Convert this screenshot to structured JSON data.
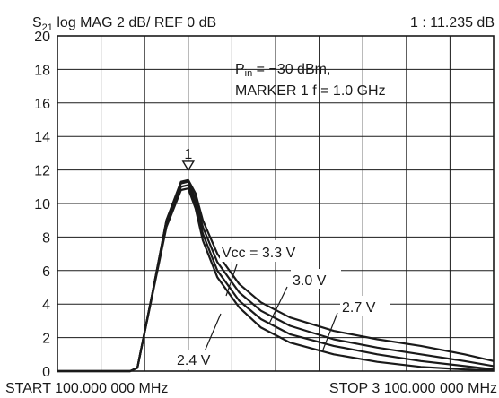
{
  "header": {
    "left": "S21 log   MAG   2 dB/   REF 0 dB",
    "s_base": "S",
    "s_sub": "21",
    "rest": " log    MAG    2 dB/    REF 0 dB",
    "marker_readout": "1 :  11.235 dB"
  },
  "footer": {
    "start": "START  100.000 000 MHz",
    "stop": "STOP  3 100.000 000 MHz"
  },
  "conditions": {
    "pin_base": "P",
    "pin_sub": "in",
    "pin_rest": " = −30 dBm,",
    "marker_line": "MARKER 1  f = 1.0 GHz"
  },
  "marker": {
    "label": "1",
    "x_ghz": 1.0,
    "y_db": 11.235
  },
  "chart_data": {
    "type": "line",
    "title": "S21 log MAG 2 dB/ REF 0 dB",
    "xlabel": "",
    "ylabel": "",
    "xlim": [
      0.1,
      3.1
    ],
    "ylim": [
      0,
      20
    ],
    "x_unit": "GHz",
    "y_unit": "dB",
    "yticks": [
      "0",
      "2",
      "4",
      "6",
      "8",
      "10",
      "12",
      "14",
      "16",
      "18",
      "20"
    ],
    "x_divisions": 10,
    "grid": true,
    "series": [
      {
        "name": "Vcc = 3.3 V",
        "label_text": "Vcc = 3.3 V",
        "points": [
          [
            0.1,
            0
          ],
          [
            0.6,
            0
          ],
          [
            0.65,
            0.2
          ],
          [
            0.75,
            4.5
          ],
          [
            0.85,
            9.0
          ],
          [
            0.95,
            11.3
          ],
          [
            1.0,
            11.4
          ],
          [
            1.05,
            10.6
          ],
          [
            1.1,
            9.0
          ],
          [
            1.2,
            7.0
          ],
          [
            1.35,
            5.2
          ],
          [
            1.5,
            4.1
          ],
          [
            1.7,
            3.2
          ],
          [
            2.0,
            2.4
          ],
          [
            2.3,
            1.9
          ],
          [
            2.6,
            1.5
          ],
          [
            2.9,
            1.0
          ],
          [
            3.1,
            0.6
          ]
        ]
      },
      {
        "name": "3.0 V",
        "label_text": "3.0 V",
        "points": [
          [
            0.1,
            0
          ],
          [
            0.6,
            0
          ],
          [
            0.65,
            0.2
          ],
          [
            0.75,
            4.5
          ],
          [
            0.85,
            9.0
          ],
          [
            0.95,
            11.2
          ],
          [
            1.0,
            11.3
          ],
          [
            1.05,
            10.3
          ],
          [
            1.1,
            8.6
          ],
          [
            1.2,
            6.5
          ],
          [
            1.35,
            4.7
          ],
          [
            1.5,
            3.6
          ],
          [
            1.7,
            2.7
          ],
          [
            2.0,
            1.9
          ],
          [
            2.3,
            1.4
          ],
          [
            2.6,
            1.0
          ],
          [
            2.9,
            0.6
          ],
          [
            3.1,
            0.3
          ]
        ]
      },
      {
        "name": "2.7 V",
        "label_text": "2.7 V",
        "points": [
          [
            0.1,
            0
          ],
          [
            0.6,
            0
          ],
          [
            0.65,
            0.2
          ],
          [
            0.75,
            4.5
          ],
          [
            0.85,
            8.8
          ],
          [
            0.95,
            11.0
          ],
          [
            1.0,
            11.1
          ],
          [
            1.05,
            10.0
          ],
          [
            1.1,
            8.2
          ],
          [
            1.2,
            6.0
          ],
          [
            1.35,
            4.2
          ],
          [
            1.5,
            3.1
          ],
          [
            1.7,
            2.2
          ],
          [
            2.0,
            1.5
          ],
          [
            2.3,
            1.0
          ],
          [
            2.6,
            0.6
          ],
          [
            2.9,
            0.3
          ],
          [
            3.1,
            0.1
          ]
        ]
      },
      {
        "name": "2.4 V",
        "label_text": "2.4 V",
        "points": [
          [
            0.1,
            0
          ],
          [
            0.6,
            0
          ],
          [
            0.65,
            0.2
          ],
          [
            0.75,
            4.4
          ],
          [
            0.85,
            8.6
          ],
          [
            0.95,
            10.8
          ],
          [
            1.0,
            10.9
          ],
          [
            1.05,
            9.7
          ],
          [
            1.1,
            7.8
          ],
          [
            1.2,
            5.6
          ],
          [
            1.35,
            3.8
          ],
          [
            1.5,
            2.6
          ],
          [
            1.7,
            1.7
          ],
          [
            2.0,
            1.0
          ],
          [
            2.3,
            0.55
          ],
          [
            2.6,
            0.25
          ],
          [
            2.9,
            0.1
          ],
          [
            3.1,
            0.05
          ]
        ]
      }
    ]
  }
}
